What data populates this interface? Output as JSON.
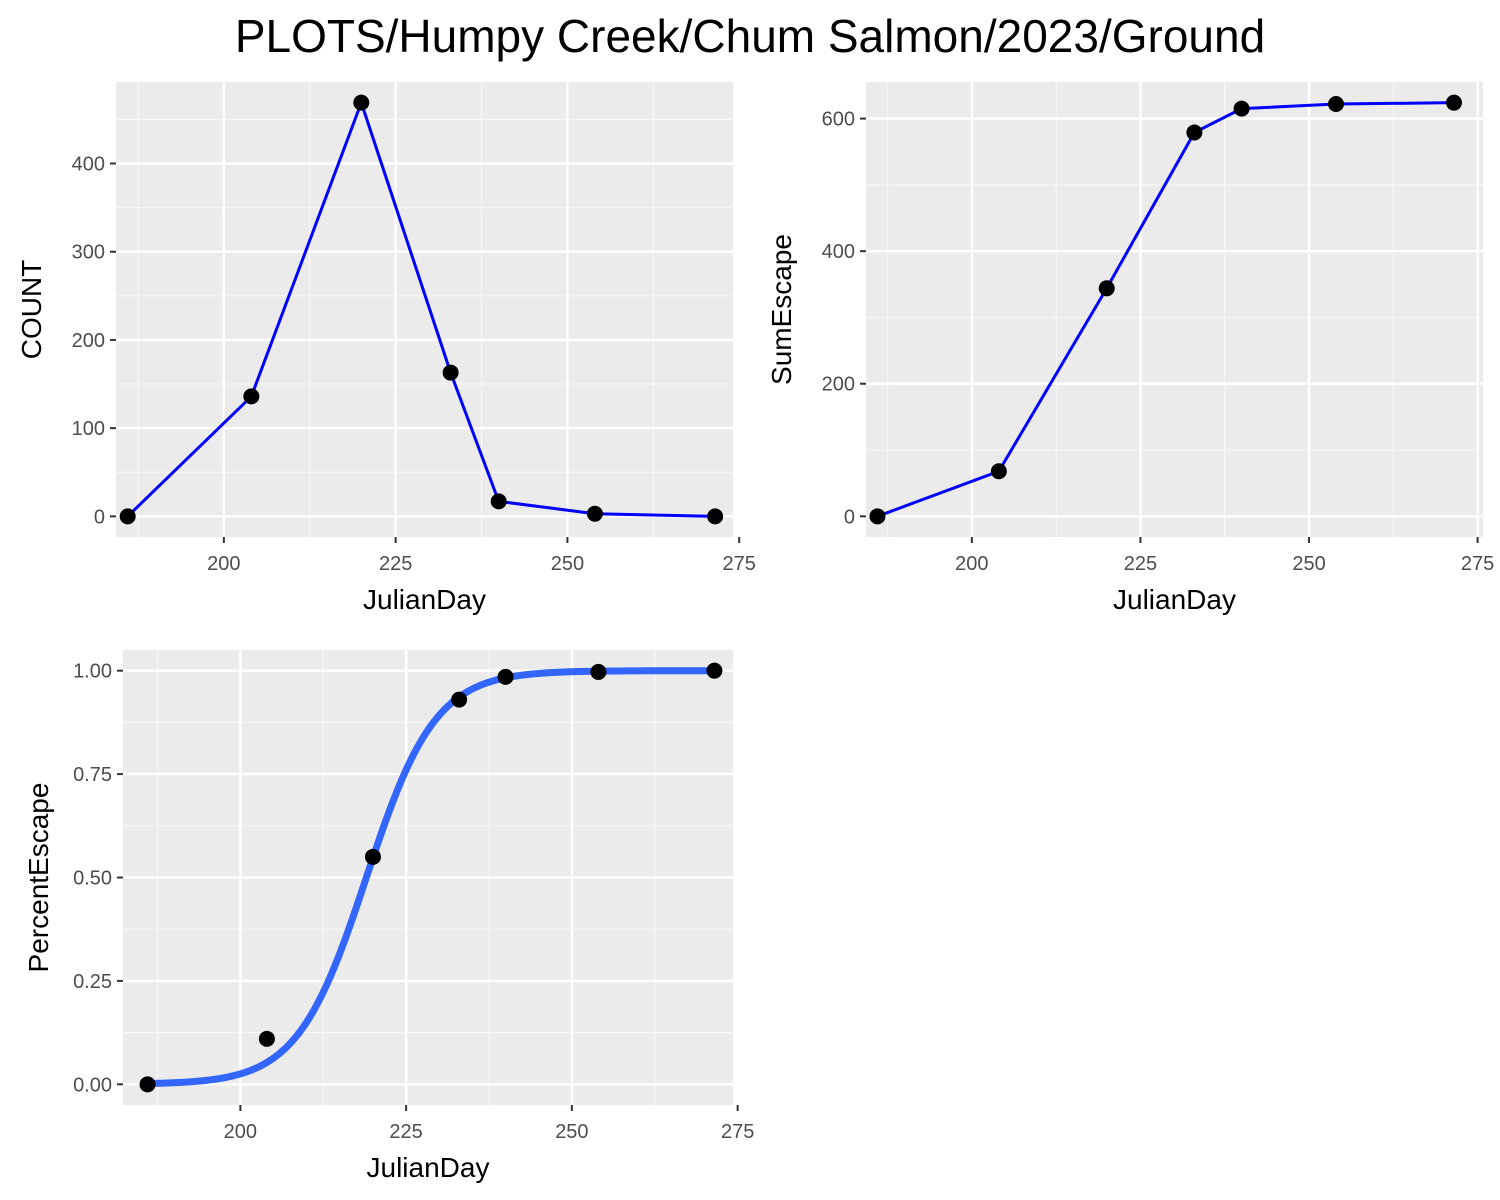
{
  "title": "PLOTS/Humpy Creek/Chum Salmon/2023/Ground",
  "colors": {
    "panel_bg": "#ebebeb",
    "grid_major": "#ffffff",
    "grid_minor": "#f7f7f7",
    "line": "#0000ff",
    "smooth": "#3366ff",
    "point": "#000000",
    "tick_text": "#4d4d4d",
    "tick_mark": "#333333"
  },
  "chart_data": [
    {
      "type": "line",
      "xlabel": "JulianDay",
      "ylabel": "COUNT",
      "xlim": [
        184.3,
        274.1
      ],
      "ylim": [
        -23.4,
        492.4
      ],
      "xticks": [
        200,
        225,
        250,
        275
      ],
      "yticks": [
        0,
        100,
        200,
        300,
        400
      ],
      "ytick_labels": [
        "0",
        "100",
        "200",
        "300",
        "400"
      ],
      "series": [
        {
          "x": [
            186,
            204,
            220,
            233,
            240,
            254,
            271.5
          ],
          "y": [
            0,
            136,
            469,
            163,
            17,
            3,
            0
          ]
        }
      ]
    },
    {
      "type": "line",
      "xlabel": "JulianDay",
      "ylabel": "SumEscape",
      "xlim": [
        184.3,
        275.8
      ],
      "ylim": [
        -31.2,
        655.2
      ],
      "xticks": [
        200,
        225,
        250,
        275
      ],
      "yticks": [
        0,
        200,
        400,
        600
      ],
      "ytick_labels": [
        "0",
        "200",
        "400",
        "600"
      ],
      "series": [
        {
          "x": [
            186,
            204,
            220,
            233,
            240,
            254,
            271.5
          ],
          "y": [
            0,
            68,
            344,
            579,
            615,
            622,
            624
          ]
        }
      ]
    },
    {
      "type": "line",
      "xlabel": "JulianDay",
      "ylabel": "PercentEscape",
      "xlim": [
        182.3,
        274.3
      ],
      "ylim": [
        -0.05,
        1.05
      ],
      "xticks": [
        200,
        225,
        250,
        275
      ],
      "yticks": [
        0,
        0.25,
        0.5,
        0.75,
        1
      ],
      "ytick_labels": [
        "0.00",
        "0.25",
        "0.50",
        "0.75",
        "1.00"
      ],
      "series": [
        {
          "x": [
            186,
            204,
            220,
            233,
            240,
            254,
            271.5
          ],
          "y": [
            0,
            0.11,
            0.55,
            0.93,
            0.985,
            0.997,
            1.0
          ]
        }
      ],
      "fitted_curve": {
        "model": "logistic",
        "midpoint": 219,
        "scale": 5.2
      }
    }
  ]
}
